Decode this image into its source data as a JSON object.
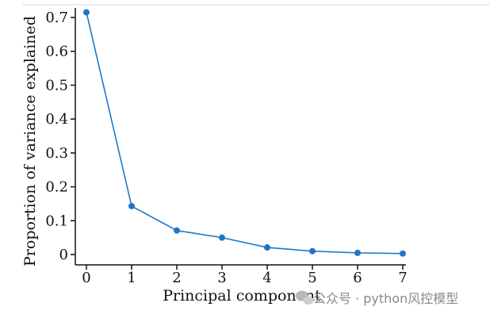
{
  "chart_data": {
    "type": "line",
    "x": [
      0,
      1,
      2,
      3,
      4,
      5,
      6,
      7
    ],
    "series": [
      {
        "values": [
          0.715,
          0.143,
          0.071,
          0.05,
          0.021,
          0.01,
          0.005,
          0.003
        ]
      }
    ],
    "xlabel": "Principal component",
    "ylabel": "Proportion of variance explained",
    "xlim": [
      0,
      7
    ],
    "ylim": [
      0,
      0.7
    ],
    "xticks": [
      "0",
      "1",
      "2",
      "3",
      "4",
      "5",
      "6",
      "7"
    ],
    "yticks": [
      "0",
      "0.1",
      "0.2",
      "0.3",
      "0.4",
      "0.5",
      "0.6",
      "0.7"
    ],
    "grid": false,
    "colors": {
      "line": "#1f77c4",
      "marker": "#1f77c4"
    }
  },
  "watermark": {
    "icon": "wechat-icon",
    "text": "公众号 · python风控模型"
  }
}
